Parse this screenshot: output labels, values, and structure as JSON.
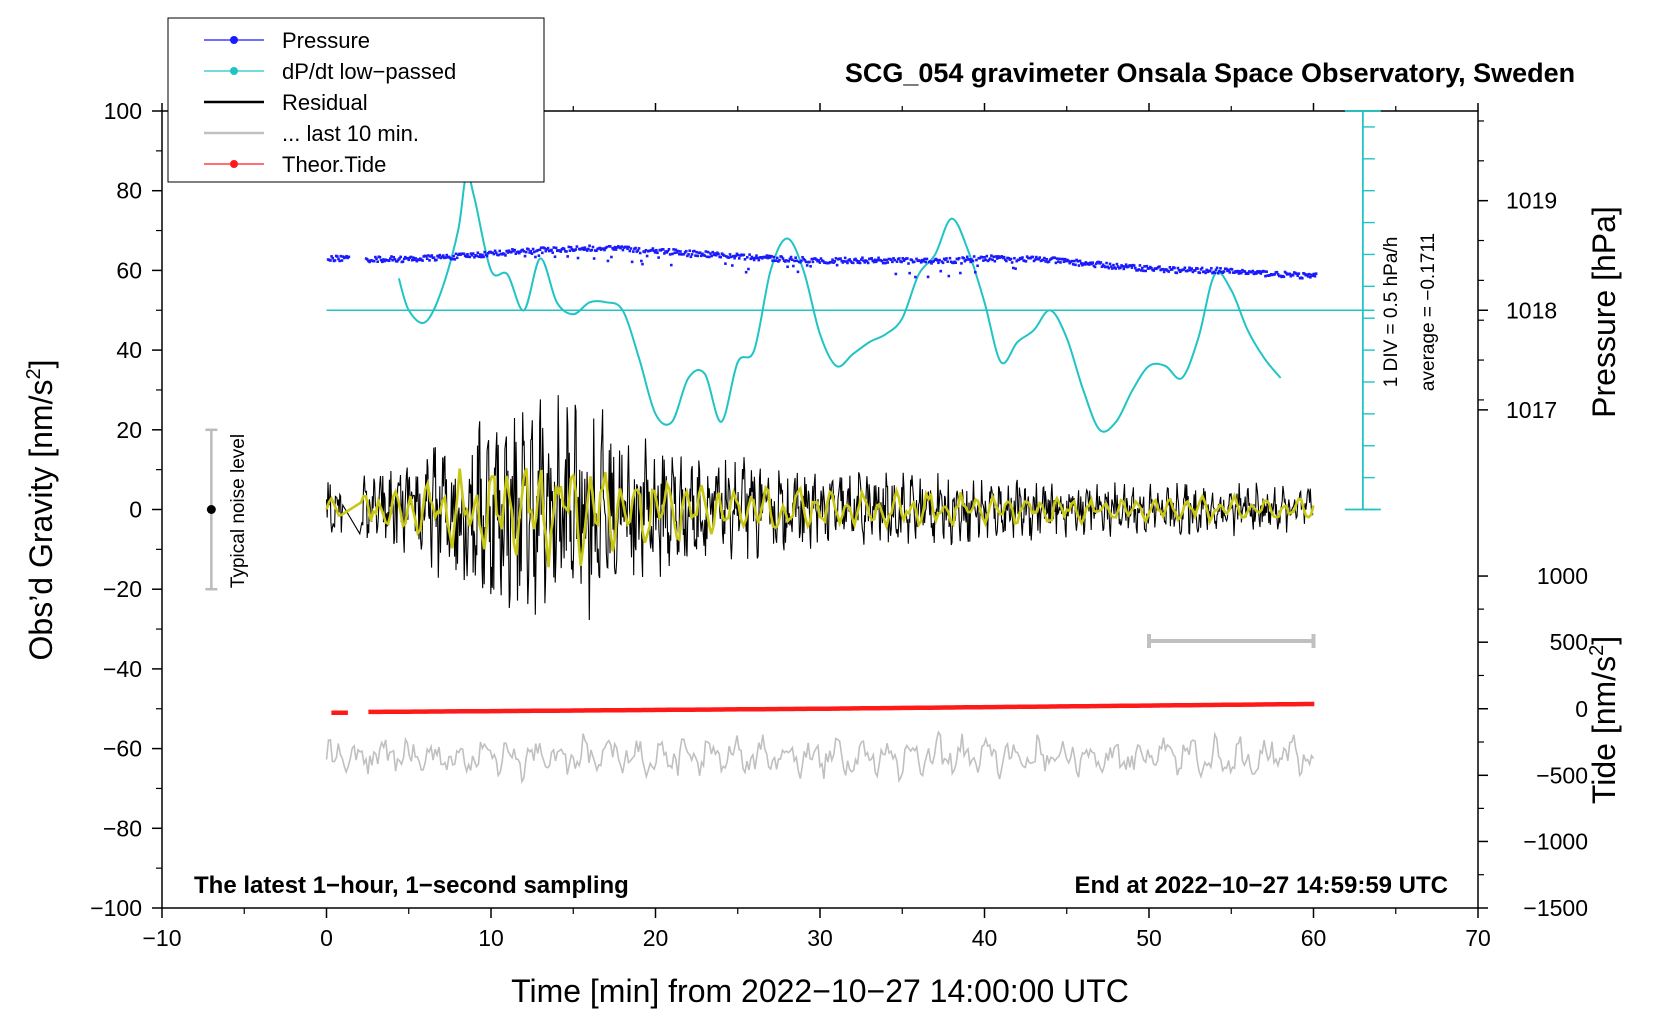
{
  "chart_data": {
    "type": "line",
    "title": "SCG_054 gravimeter Onsala Space Observatory, Sweden",
    "xlabel": "Time [min] from 2022−10−27 14:00:00 UTC",
    "ylabel": "Obs’d Gravity [nm/s",
    "ylabel_sup": "2",
    "ylabel_close": "]",
    "xlim": [
      -10,
      70
    ],
    "ylim": [
      -100,
      100
    ],
    "x_ticks": [
      -10,
      0,
      10,
      20,
      30,
      40,
      50,
      60,
      70
    ],
    "x_tick_labels": [
      "−10",
      "0",
      "10",
      "20",
      "30",
      "40",
      "50",
      "60",
      "70"
    ],
    "y_ticks": [
      -100,
      -80,
      -60,
      -40,
      -20,
      0,
      20,
      40,
      60,
      80,
      100
    ],
    "y_tick_labels": [
      "−100",
      "−80",
      "−60",
      "−40",
      "−20",
      "0",
      "20",
      "40",
      "60",
      "80",
      "100"
    ],
    "pressure_axis": {
      "label": "Pressure [hPa]",
      "ticks": [
        {
          "label": "1019",
          "y": 77.5
        },
        {
          "label": "1018",
          "y": 50
        },
        {
          "label": "1017",
          "y": 25
        }
      ]
    },
    "tide_axis": {
      "label": "Tide [nm/s",
      "label_sup": "2",
      "label_close": "]",
      "ticks": [
        {
          "label": "1000",
          "y": -16.7
        },
        {
          "label": "500",
          "y": -33.3
        },
        {
          "label": "0",
          "y": -50
        },
        {
          "label": "−500",
          "y": -66.7
        },
        {
          "label": "−1000",
          "y": -83.3
        },
        {
          "label": "−1500",
          "y": -100
        }
      ]
    },
    "dpdt_scale": {
      "line1": "1 DIV = 0.5 hPa/h",
      "line2": "average = −0.1711",
      "x": 63,
      "y_min": 0,
      "y_max": 100,
      "y_average": 50,
      "div_ticks": [
        0,
        8,
        16,
        24,
        32,
        40,
        48,
        56,
        64,
        72,
        80,
        88,
        96
      ]
    },
    "noise_bar": {
      "label": "Typical noise level",
      "x": -7,
      "y_min": -20,
      "y_max": 20,
      "y_center": 0
    },
    "last10_bar": {
      "x_start": 50,
      "x_end": 60,
      "y": -33
    },
    "notes": {
      "left": "The latest 1−hour, 1−second sampling",
      "right": "End at 2022−10−27 14:59:59 UTC"
    },
    "legend": [
      {
        "label": "Pressure",
        "color": "#1a1aff",
        "marker": true
      },
      {
        "label": "dP/dt low−passed",
        "color": "#20c4c4",
        "marker": true
      },
      {
        "label": "Residual",
        "color": "#000000",
        "marker": false
      },
      {
        "label": "... last 10 min.",
        "color": "#c0c0c0",
        "marker": false
      },
      {
        "label": "Theor.Tide",
        "color": "#ff1a1a",
        "marker": true
      }
    ],
    "series": [
      {
        "name": "Pressure",
        "color": "#1a1aff",
        "x": [
          0.3,
          1.3,
          2.5,
          5,
          8,
          10,
          12,
          14,
          16,
          18,
          20,
          22,
          24,
          26,
          28,
          30,
          32,
          34,
          36,
          38,
          40,
          42,
          44,
          46,
          48,
          50,
          52,
          54,
          56,
          58,
          60
        ],
        "values": [
          63,
          63,
          62.8,
          62.8,
          63.5,
          64.2,
          64.8,
          65.2,
          65.6,
          65.5,
          65,
          64.5,
          63.8,
          63.2,
          62.8,
          62.5,
          62.5,
          62.5,
          62.3,
          62.5,
          63,
          63,
          62.6,
          61.8,
          61,
          60.5,
          60,
          60,
          59.5,
          59,
          58.5
        ]
      },
      {
        "name": "dP/dt low−passed",
        "color": "#20c4c4",
        "x": [
          4.4,
          5,
          6,
          7,
          8,
          8.5,
          9,
          10,
          11,
          12,
          13,
          14,
          15,
          16,
          17,
          18,
          19,
          20,
          21,
          22,
          23,
          24,
          25,
          26,
          27,
          28,
          29,
          30,
          31,
          32,
          33,
          34,
          35,
          36,
          37,
          38,
          39,
          40,
          41,
          42,
          43,
          44,
          45,
          46,
          47,
          48,
          49,
          50,
          51,
          52,
          53,
          54,
          55,
          56,
          57,
          58
        ],
        "values": [
          58,
          50,
          47,
          55,
          70,
          84,
          78,
          60,
          59,
          50,
          63,
          52,
          49,
          52,
          52,
          50,
          38,
          24,
          22,
          33,
          34,
          22,
          37,
          40,
          60,
          68,
          60,
          44,
          36,
          39,
          42,
          44,
          48,
          59,
          64,
          73,
          65,
          52,
          37,
          42,
          45,
          50,
          43,
          30,
          20,
          22,
          30,
          36,
          36,
          33,
          43,
          59,
          55,
          45,
          38,
          33
        ]
      },
      {
        "name": "Residual",
        "color": "#000000",
        "x": [
          0,
          2,
          4,
          6,
          8,
          10,
          12,
          13,
          14,
          16,
          18,
          20,
          22,
          24,
          26,
          28,
          30,
          32,
          34,
          36,
          38,
          40,
          42,
          44,
          46,
          48,
          50,
          52,
          54,
          56,
          58,
          60
        ],
        "values": [
          0,
          0,
          0,
          0,
          0,
          0,
          0,
          0,
          0,
          0,
          0,
          0,
          0,
          0,
          0,
          0,
          0,
          0,
          0,
          0,
          0,
          0,
          0,
          0,
          0,
          0,
          0,
          0,
          0,
          0,
          0,
          0
        ],
        "envelope": [
          8,
          9,
          11,
          16,
          22,
          26,
          28,
          32,
          30,
          28,
          22,
          20,
          16,
          14,
          13,
          12,
          11,
          10,
          10,
          10,
          9,
          9,
          8,
          8,
          7,
          7,
          7,
          7,
          7,
          7,
          6,
          6
        ]
      },
      {
        "name": "Smoothed residual",
        "color": "#c8c814",
        "x": [
          0,
          60
        ],
        "values": [
          0,
          0
        ]
      },
      {
        "name": "... last 10 min.",
        "color": "#c0c0c0",
        "x": [
          0,
          10,
          20,
          30,
          40,
          50,
          60
        ],
        "values": [
          -62,
          -62,
          -62,
          -62,
          -62,
          -62,
          -62
        ],
        "amplitude": 5
      },
      {
        "name": "Theor.Tide",
        "color": "#ff1a1a",
        "x": [
          0.3,
          1.3,
          2.5,
          10,
          20,
          30,
          40,
          50,
          60
        ],
        "values": [
          -51,
          -51,
          -50.8,
          -50.6,
          -50.3,
          -50,
          -49.6,
          -49.2,
          -48.8
        ]
      }
    ]
  }
}
